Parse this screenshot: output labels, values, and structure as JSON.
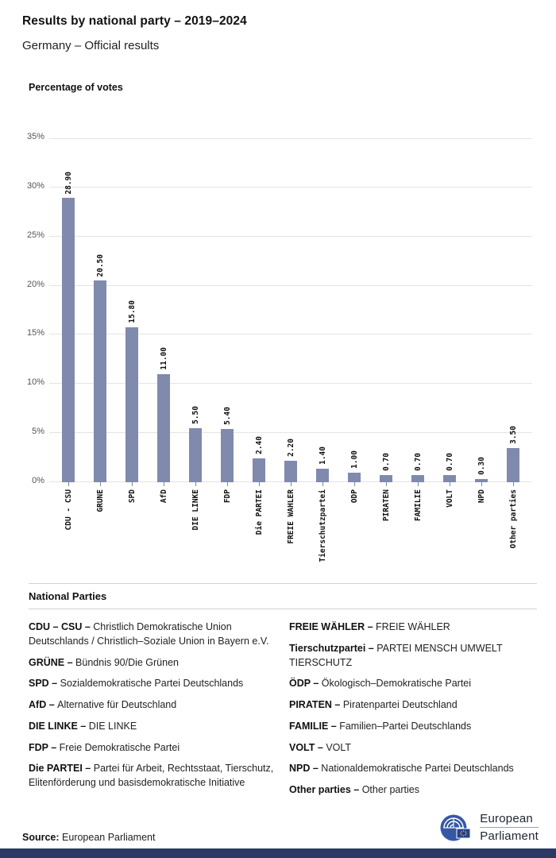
{
  "header": {
    "title": "Results by national party – 2019–2024",
    "subtitle": "Germany – Official results"
  },
  "chart_data": {
    "type": "bar",
    "title": "Percentage of votes",
    "categories": [
      "CDU - CSU",
      "GRÜNE",
      "SPD",
      "AfD",
      "DIE LINKE",
      "FDP",
      "Die PARTEI",
      "FREIE WÄHLER",
      "Tierschutzpartei",
      "ÖDP",
      "PIRATEN",
      "FAMILIE",
      "VOLT",
      "NPD",
      "Other parties"
    ],
    "values": [
      28.9,
      20.5,
      15.8,
      11.0,
      5.5,
      5.4,
      2.4,
      2.2,
      1.4,
      1.0,
      0.7,
      0.7,
      0.7,
      0.3,
      3.5
    ],
    "value_labels": [
      "28.90",
      "20.50",
      "15.80",
      "11.00",
      "5.50",
      "5.40",
      "2.40",
      "2.20",
      "1.40",
      "1.00",
      "0.70",
      "0.70",
      "0.70",
      "0.30",
      "3.50"
    ],
    "xlabel": "",
    "ylabel": "Percentage of votes",
    "ylim": [
      0,
      35
    ],
    "y_tick_step": 5,
    "y_tick_suffix": "%",
    "grid": true,
    "legend_position": "none",
    "bar_color": "#7f8aac"
  },
  "legend": {
    "heading": "National Parties",
    "columns": [
      [
        {
          "abbr": "CDU – CSU –",
          "name": "Christlich Demokratische Union Deutschlands / Christlich–Soziale Union in Bayern e.V."
        },
        {
          "abbr": "GRÜNE –",
          "name": "Bündnis 90/Die Grünen"
        },
        {
          "abbr": "SPD –",
          "name": "Sozialdemokratische Partei Deutschlands"
        },
        {
          "abbr": "AfD –",
          "name": "Alternative für Deutschland"
        },
        {
          "abbr": "DIE LINKE –",
          "name": "DIE LINKE"
        },
        {
          "abbr": "FDP –",
          "name": "Freie Demokratische Partei"
        },
        {
          "abbr": "Die PARTEI –",
          "name": "Partei für Arbeit, Rechtsstaat, Tierschutz, Elitenförderung und basisdemokratische Initiative"
        }
      ],
      [
        {
          "abbr": "FREIE WÄHLER –",
          "name": "FREIE WÄHLER"
        },
        {
          "abbr": "Tierschutzpartei –",
          "name": "PARTEI MENSCH UMWELT TIERSCHUTZ"
        },
        {
          "abbr": "ÖDP –",
          "name": "Ökologisch–Demokratische Partei"
        },
        {
          "abbr": "PIRATEN –",
          "name": "Piratenpartei Deutschland"
        },
        {
          "abbr": "FAMILIE –",
          "name": "Familien–Partei Deutschlands"
        },
        {
          "abbr": "VOLT –",
          "name": "VOLT"
        },
        {
          "abbr": "NPD –",
          "name": "Nationaldemokratische Partei Deutschlands"
        },
        {
          "abbr": "Other parties –",
          "name": "Other parties"
        }
      ]
    ]
  },
  "footer": {
    "source_label": "Source:",
    "source_value": "European Parliament",
    "logo": {
      "line1": "European",
      "line2": "Parliament"
    }
  },
  "colors": {
    "bar": "#7f8aac",
    "gridline": "#e4e4e4",
    "footer_bar": "#2b3a64",
    "logo_blue": "#3558a4",
    "flag_blue": "#26418f",
    "star_yellow": "#ffcc00"
  }
}
